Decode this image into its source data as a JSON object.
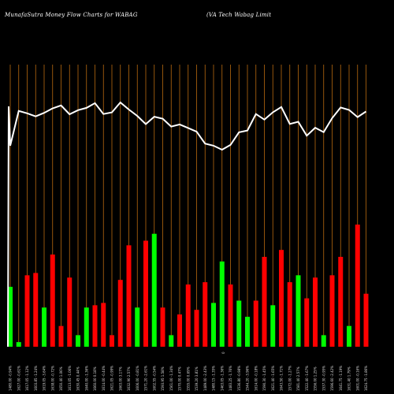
{
  "header": {
    "left": "MunafaSutra  Money Flow  Charts for WABAG",
    "right": "(VA Tech Wabag Limit"
  },
  "colors": {
    "background": "#000000",
    "gridline": "#b86a10",
    "price_line": "#ffffff",
    "up_bar": "#00ff00",
    "down_bar": "#ff0000"
  },
  "chart_data": {
    "type": "bar",
    "title": "Money Flow Chart for WABAG",
    "categories": [
      "Wed 25 Dec 2024",
      "Tue 24 Dec 2024",
      "Mon 23 Dec 2024",
      "Fri 20 Dec 2024",
      "Thu 19 Dec 2024",
      "Wed 18 Dec 2024",
      "Tue 17 Dec 2024",
      "Mon 16 Dec 2024",
      "Fri 13 Dec 2024",
      "Thu 12 Dec 2024",
      "Wed 11 Dec 2024",
      "Tue 10 Dec 2024",
      "Mon 09 Dec 2024",
      "Fri 06 Dec 2024",
      "Thu 05 Dec 2024",
      "Wed 04 Dec 2024",
      "Tue 03 Dec 2024",
      "Mon 02 Dec 2024",
      "Fri 29 Nov 2024",
      "Thu 28 Nov 2024",
      "Wed 27 Nov 2024",
      "Tue 26 Nov 2024",
      "Mon 25 Nov 2024",
      "Fri 22 Nov 2024",
      "Thu 21 Nov 2024",
      "Tue 19 Nov 2024",
      "Mon 18 Nov 2024",
      "Thu 14 Nov 2024",
      "Wed 13 Nov 2024",
      "Tue 12 Nov 2024",
      "Mon 11 Nov 2024",
      "Fri 08 Nov 2024",
      "Thu 07 Nov 2024",
      "Wed 06 Nov 2024",
      "Tue 05 Nov 2024",
      "Mon 04 Nov 2024",
      "Fri 01 Nov 2024",
      "Thu 31 Oct 2024",
      "Wed 30 Oct 2024",
      "Tue 29 Oct 2024",
      "Mon 28 Oct 2024",
      "Fri 25 Oct 2024",
      "Thu 24 Oct 2024"
    ],
    "x_tick_labels": [
      "1480.00 -0.94%",
      "1627.00 -0.61%",
      "1617.05 -1.12%",
      "1603.85 -1.24%",
      "1619.05 -3.64%",
      "1638.00 -0.72%",
      "1650.40 1.06%",
      "1613.05 -1.06%",
      "1630.45 0.44%",
      "1640.00 -1.36%",
      "1660.00 0.18%",
      "1614.00 -0.44%",
      "1621.05 -0.99%",
      "1663.00 3.17%",
      "1632.90 2.57%",
      "1606.00 -0.81%",
      "1571.20 -2.61%",
      "1602.55 -0.54%",
      "1593.95 1.58%",
      "1561.00 -1.34%",
      "1570.00 0.47%",
      "1555.00 0.69%",
      "1539.20 3.81%",
      "1489.00 -2.43%",
      "1480.15 -1.35%",
      "1463.05 -1.36%",
      "1483.25 -1.76%",
      "1536.80 -0.98%",
      "1544.20 -3.96%",
      "1614.00 -0.18%",
      "1590.30 -1.45%",
      "1621.40 -1.65%",
      "1643.50 -1.71%",
      "1572.00 -1.27%",
      "1581.40 2.57%",
      "1522.40 -1.67%",
      "1556.00 1.25%",
      "1537.30 -0.95%",
      "1596.60 -2.42%",
      "1641.75 -1.19%",
      "1631.40 1.79%",
      "1601.00 -0.16%",
      "1624.75 -1.86%"
    ],
    "x_marker": "0",
    "series": [
      {
        "values": [
          1480.0,
          1627.0,
          1617.05,
          1603.85,
          1619.05,
          1638.0,
          1650.4,
          1613.05,
          1630.45,
          1640.0,
          1660.0,
          1614.0,
          1621.05,
          1663.0,
          1632.9,
          1606.0,
          1571.2,
          1602.55,
          1593.95,
          1561.0,
          1570.0,
          1555.0,
          1539.2,
          1489.0,
          1480.15,
          1463.05,
          1483.25,
          1536.8,
          1544.2,
          1614.0,
          1590.3,
          1621.4,
          1643.5,
          1572.0,
          1581.4,
          1522.4,
          1556.0,
          1537.3,
          1596.6,
          1641.75,
          1631.4,
          1601.0,
          1624.75
        ]
      },
      {
        "values": [
          26,
          2,
          31,
          32,
          17,
          40,
          9,
          30,
          5,
          17,
          18,
          19,
          5,
          29,
          44,
          17,
          46,
          49,
          17,
          5,
          14,
          27,
          16,
          28,
          19,
          37,
          27,
          20,
          13,
          20,
          39,
          18,
          42,
          28,
          31,
          21,
          30,
          5,
          31,
          39,
          9,
          53,
          23
        ],
        "directions": [
          "up",
          "up",
          "down",
          "down",
          "up",
          "down",
          "down",
          "down",
          "up",
          "up",
          "down",
          "down",
          "down",
          "down",
          "down",
          "up",
          "down",
          "up",
          "down",
          "up",
          "down",
          "down",
          "down",
          "down",
          "up",
          "up",
          "down",
          "up",
          "up",
          "down",
          "down",
          "up",
          "down",
          "down",
          "up",
          "down",
          "down",
          "up",
          "down",
          "down",
          "up",
          "down",
          "down"
        ]
      }
    ],
    "grid": true
  }
}
